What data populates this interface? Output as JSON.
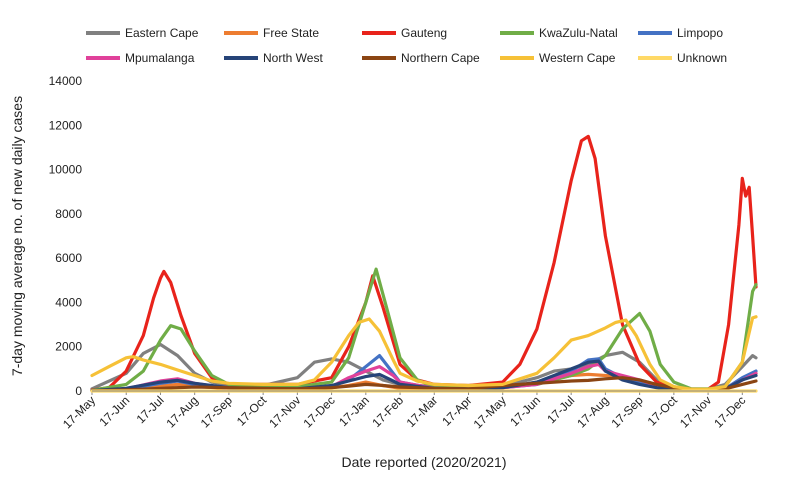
{
  "chart_data": {
    "type": "line",
    "title": "",
    "xlabel": "Date reported (2020/2021)",
    "ylabel": "7-day moving average no. of new daily cases",
    "ylim": [
      0,
      14000
    ],
    "yticks": [
      0,
      2000,
      4000,
      6000,
      8000,
      10000,
      12000,
      14000
    ],
    "ytick_labels": [
      "0",
      "2000",
      "4000",
      "6000",
      "8000",
      "10000",
      "12000",
      "14000"
    ],
    "x_range": [
      0,
      19.4
    ],
    "xticks": [
      "17-May",
      "17-Jun",
      "17-Jul",
      "17-Aug",
      "17-Sep",
      "17-Oct",
      "17-Nov",
      "17-Dec",
      "17-Jan",
      "17-Feb",
      "17-Mar",
      "17-Apr",
      "17-May",
      "17-Jun",
      "17-Jul",
      "17-Aug",
      "17-Sep",
      "17-Oct",
      "17-Nov",
      "17-Dec"
    ],
    "grid": false,
    "legend_position": "top",
    "series": [
      {
        "name": "Eastern Cape",
        "color": "#808080",
        "points": [
          [
            0,
            100
          ],
          [
            1,
            800
          ],
          [
            1.5,
            1700
          ],
          [
            2,
            2100
          ],
          [
            2.5,
            1600
          ],
          [
            3,
            800
          ],
          [
            3.5,
            400
          ],
          [
            4,
            250
          ],
          [
            5,
            250
          ],
          [
            6,
            600
          ],
          [
            6.5,
            1300
          ],
          [
            7,
            1450
          ],
          [
            7.5,
            1300
          ],
          [
            8,
            900
          ],
          [
            8.5,
            500
          ],
          [
            9,
            300
          ],
          [
            10,
            200
          ],
          [
            11,
            200
          ],
          [
            12,
            300
          ],
          [
            12.5,
            400
          ],
          [
            13,
            600
          ],
          [
            13.5,
            900
          ],
          [
            14,
            1000
          ],
          [
            14.5,
            1200
          ],
          [
            15,
            1600
          ],
          [
            15.5,
            1750
          ],
          [
            16,
            1300
          ],
          [
            16.5,
            500
          ],
          [
            17,
            150
          ],
          [
            17.5,
            80
          ],
          [
            18,
            80
          ],
          [
            18.5,
            300
          ],
          [
            19,
            1100
          ],
          [
            19.3,
            1600
          ],
          [
            19.4,
            1500
          ]
        ]
      },
      {
        "name": "Free State",
        "color": "#ed7d31",
        "points": [
          [
            0,
            20
          ],
          [
            1,
            80
          ],
          [
            2,
            220
          ],
          [
            2.5,
            300
          ],
          [
            3,
            220
          ],
          [
            4,
            100
          ],
          [
            5,
            80
          ],
          [
            6,
            80
          ],
          [
            7,
            150
          ],
          [
            7.5,
            250
          ],
          [
            8,
            400
          ],
          [
            8.5,
            250
          ],
          [
            9,
            120
          ],
          [
            10,
            80
          ],
          [
            11,
            80
          ],
          [
            12,
            150
          ],
          [
            13,
            400
          ],
          [
            14,
            700
          ],
          [
            14.5,
            750
          ],
          [
            15,
            700
          ],
          [
            15.5,
            650
          ],
          [
            16,
            450
          ],
          [
            16.5,
            200
          ],
          [
            17,
            60
          ],
          [
            18,
            40
          ],
          [
            18.5,
            100
          ],
          [
            19,
            500
          ],
          [
            19.4,
            800
          ]
        ]
      },
      {
        "name": "Gauteng",
        "color": "#e8231b",
        "points": [
          [
            0,
            50
          ],
          [
            0.5,
            150
          ],
          [
            1,
            900
          ],
          [
            1.5,
            2500
          ],
          [
            1.8,
            4200
          ],
          [
            2,
            5100
          ],
          [
            2.1,
            5400
          ],
          [
            2.3,
            4900
          ],
          [
            2.6,
            3400
          ],
          [
            3,
            1700
          ],
          [
            3.5,
            600
          ],
          [
            4,
            300
          ],
          [
            5,
            300
          ],
          [
            6,
            300
          ],
          [
            7,
            600
          ],
          [
            7.5,
            2000
          ],
          [
            8,
            4000
          ],
          [
            8.2,
            5200
          ],
          [
            8.5,
            3800
          ],
          [
            9,
            1200
          ],
          [
            9.5,
            500
          ],
          [
            10,
            300
          ],
          [
            11,
            250
          ],
          [
            12,
            400
          ],
          [
            12.5,
            1200
          ],
          [
            13,
            2800
          ],
          [
            13.5,
            5800
          ],
          [
            14,
            9500
          ],
          [
            14.3,
            11300
          ],
          [
            14.5,
            11500
          ],
          [
            14.7,
            10500
          ],
          [
            15,
            7000
          ],
          [
            15.5,
            3000
          ],
          [
            16,
            1200
          ],
          [
            16.5,
            400
          ],
          [
            17,
            150
          ],
          [
            17.5,
            60
          ],
          [
            18,
            80
          ],
          [
            18.3,
            400
          ],
          [
            18.6,
            3000
          ],
          [
            18.9,
            7500
          ],
          [
            19.0,
            9600
          ],
          [
            19.1,
            8800
          ],
          [
            19.2,
            9200
          ],
          [
            19.3,
            7000
          ],
          [
            19.4,
            4700
          ]
        ]
      },
      {
        "name": "KwaZulu-Natal",
        "color": "#70ad47",
        "points": [
          [
            0,
            30
          ],
          [
            1,
            300
          ],
          [
            1.5,
            900
          ],
          [
            2,
            2300
          ],
          [
            2.3,
            2950
          ],
          [
            2.6,
            2800
          ],
          [
            3,
            1800
          ],
          [
            3.5,
            700
          ],
          [
            4,
            300
          ],
          [
            5,
            200
          ],
          [
            6,
            200
          ],
          [
            7,
            400
          ],
          [
            7.5,
            1500
          ],
          [
            8,
            4000
          ],
          [
            8.3,
            5500
          ],
          [
            8.6,
            3800
          ],
          [
            9,
            1500
          ],
          [
            9.5,
            500
          ],
          [
            10,
            200
          ],
          [
            11,
            150
          ],
          [
            12,
            200
          ],
          [
            13,
            300
          ],
          [
            14,
            700
          ],
          [
            14.5,
            1000
          ],
          [
            15,
            1600
          ],
          [
            15.5,
            2800
          ],
          [
            16,
            3500
          ],
          [
            16.3,
            2700
          ],
          [
            16.6,
            1200
          ],
          [
            17,
            400
          ],
          [
            17.5,
            100
          ],
          [
            18,
            100
          ],
          [
            18.5,
            200
          ],
          [
            19,
            1300
          ],
          [
            19.3,
            4500
          ],
          [
            19.4,
            4800
          ]
        ]
      },
      {
        "name": "Limpopo",
        "color": "#4472c4",
        "points": [
          [
            0,
            10
          ],
          [
            1,
            80
          ],
          [
            2,
            350
          ],
          [
            2.5,
            450
          ],
          [
            3,
            300
          ],
          [
            4,
            120
          ],
          [
            5,
            80
          ],
          [
            6,
            80
          ],
          [
            7,
            200
          ],
          [
            7.5,
            500
          ],
          [
            8,
            1100
          ],
          [
            8.4,
            1600
          ],
          [
            8.7,
            1000
          ],
          [
            9,
            400
          ],
          [
            10,
            120
          ],
          [
            11,
            80
          ],
          [
            12,
            150
          ],
          [
            13,
            300
          ],
          [
            14,
            900
          ],
          [
            14.5,
            1400
          ],
          [
            14.8,
            1450
          ],
          [
            15,
            1000
          ],
          [
            15.5,
            600
          ],
          [
            16,
            400
          ],
          [
            16.5,
            200
          ],
          [
            17,
            80
          ],
          [
            18,
            40
          ],
          [
            18.5,
            100
          ],
          [
            19,
            600
          ],
          [
            19.4,
            900
          ]
        ]
      },
      {
        "name": "Mpumalanga",
        "color": "#e0419a",
        "points": [
          [
            0,
            10
          ],
          [
            1,
            100
          ],
          [
            2,
            450
          ],
          [
            2.5,
            550
          ],
          [
            3,
            350
          ],
          [
            4,
            120
          ],
          [
            5,
            80
          ],
          [
            6,
            80
          ],
          [
            7,
            200
          ],
          [
            7.5,
            600
          ],
          [
            8,
            900
          ],
          [
            8.4,
            1100
          ],
          [
            8.8,
            700
          ],
          [
            9,
            400
          ],
          [
            10,
            120
          ],
          [
            11,
            80
          ],
          [
            12,
            150
          ],
          [
            13,
            300
          ],
          [
            14,
            800
          ],
          [
            14.5,
            1100
          ],
          [
            14.8,
            1200
          ],
          [
            15,
            900
          ],
          [
            15.5,
            700
          ],
          [
            16,
            500
          ],
          [
            16.5,
            250
          ],
          [
            17,
            80
          ],
          [
            18,
            40
          ],
          [
            18.5,
            100
          ],
          [
            19,
            500
          ],
          [
            19.4,
            800
          ]
        ]
      },
      {
        "name": "North West",
        "color": "#264478",
        "points": [
          [
            0,
            20
          ],
          [
            1,
            120
          ],
          [
            2,
            400
          ],
          [
            2.5,
            480
          ],
          [
            3,
            350
          ],
          [
            4,
            150
          ],
          [
            5,
            100
          ],
          [
            6,
            100
          ],
          [
            7,
            250
          ],
          [
            7.5,
            450
          ],
          [
            8,
            650
          ],
          [
            8.4,
            750
          ],
          [
            8.8,
            450
          ],
          [
            9,
            300
          ],
          [
            10,
            120
          ],
          [
            11,
            100
          ],
          [
            12,
            150
          ],
          [
            13,
            400
          ],
          [
            14,
            1000
          ],
          [
            14.5,
            1300
          ],
          [
            14.8,
            1350
          ],
          [
            15,
            900
          ],
          [
            15.5,
            500
          ],
          [
            16,
            300
          ],
          [
            16.5,
            150
          ],
          [
            17,
            60
          ],
          [
            18,
            40
          ],
          [
            18.5,
            100
          ],
          [
            19,
            500
          ],
          [
            19.4,
            700
          ]
        ]
      },
      {
        "name": "Northern Cape",
        "color": "#8b4513",
        "points": [
          [
            0,
            10
          ],
          [
            1,
            50
          ],
          [
            2,
            120
          ],
          [
            3,
            180
          ],
          [
            4,
            150
          ],
          [
            5,
            120
          ],
          [
            6,
            100
          ],
          [
            7,
            150
          ],
          [
            7.5,
            220
          ],
          [
            8,
            300
          ],
          [
            8.5,
            250
          ],
          [
            9,
            180
          ],
          [
            10,
            120
          ],
          [
            11,
            100
          ],
          [
            12,
            250
          ],
          [
            13,
            350
          ],
          [
            14,
            450
          ],
          [
            14.5,
            480
          ],
          [
            15,
            550
          ],
          [
            15.5,
            600
          ],
          [
            16,
            500
          ],
          [
            16.5,
            300
          ],
          [
            17,
            150
          ],
          [
            17.5,
            80
          ],
          [
            18,
            60
          ],
          [
            18.5,
            100
          ],
          [
            19,
            300
          ],
          [
            19.4,
            450
          ]
        ]
      },
      {
        "name": "Western Cape",
        "color": "#f6c137",
        "points": [
          [
            0,
            700
          ],
          [
            0.5,
            1100
          ],
          [
            1,
            1500
          ],
          [
            1.2,
            1550
          ],
          [
            1.5,
            1400
          ],
          [
            2,
            1200
          ],
          [
            2.5,
            950
          ],
          [
            3,
            700
          ],
          [
            3.5,
            450
          ],
          [
            4,
            350
          ],
          [
            5,
            300
          ],
          [
            6,
            300
          ],
          [
            6.5,
            500
          ],
          [
            7,
            1300
          ],
          [
            7.5,
            2500
          ],
          [
            7.8,
            3100
          ],
          [
            8.1,
            3250
          ],
          [
            8.4,
            2700
          ],
          [
            8.8,
            1400
          ],
          [
            9,
            800
          ],
          [
            9.5,
            450
          ],
          [
            10,
            300
          ],
          [
            11,
            250
          ],
          [
            12,
            300
          ],
          [
            13,
            800
          ],
          [
            13.5,
            1500
          ],
          [
            14,
            2300
          ],
          [
            14.5,
            2500
          ],
          [
            15,
            2850
          ],
          [
            15.3,
            3100
          ],
          [
            15.6,
            3200
          ],
          [
            15.9,
            2500
          ],
          [
            16.3,
            1200
          ],
          [
            16.6,
            500
          ],
          [
            17,
            200
          ],
          [
            17.5,
            80
          ],
          [
            18,
            80
          ],
          [
            18.5,
            200
          ],
          [
            19,
            1300
          ],
          [
            19.3,
            3300
          ],
          [
            19.4,
            3350
          ]
        ]
      },
      {
        "name": "Unknown",
        "color": "#ffd966",
        "points": [
          [
            0,
            0
          ],
          [
            19.4,
            0
          ]
        ]
      }
    ]
  }
}
